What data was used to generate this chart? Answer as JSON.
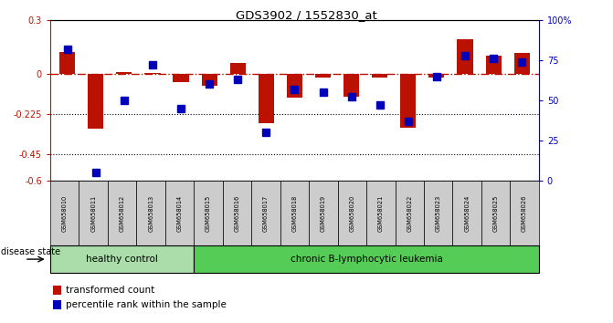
{
  "title": "GDS3902 / 1552830_at",
  "samples": [
    "GSM658010",
    "GSM658011",
    "GSM658012",
    "GSM658013",
    "GSM658014",
    "GSM658015",
    "GSM658016",
    "GSM658017",
    "GSM658018",
    "GSM658019",
    "GSM658020",
    "GSM658021",
    "GSM658022",
    "GSM658023",
    "GSM658024",
    "GSM658025",
    "GSM658026"
  ],
  "red_values": [
    0.12,
    -0.31,
    0.01,
    0.005,
    -0.05,
    -0.07,
    0.06,
    -0.28,
    -0.135,
    -0.025,
    -0.13,
    -0.025,
    -0.305,
    -0.02,
    0.19,
    0.1,
    0.115
  ],
  "blue_percentile": [
    82,
    5,
    50,
    72,
    45,
    60,
    63,
    30,
    57,
    55,
    52,
    47,
    37,
    65,
    78,
    76,
    74
  ],
  "ylim_left": [
    -0.6,
    0.3
  ],
  "ylim_right": [
    0,
    100
  ],
  "yticks_left": [
    -0.6,
    -0.45,
    -0.225,
    0.0,
    0.3
  ],
  "ytick_labels_left": [
    "-0.6",
    "-0.45",
    "-0.225",
    "0",
    "0.3"
  ],
  "yticks_right": [
    0,
    25,
    50,
    75,
    100
  ],
  "ytick_labels_right": [
    "0",
    "25",
    "50",
    "75",
    "100%"
  ],
  "hlines": [
    -0.225,
    -0.45
  ],
  "healthy_n": 5,
  "red_color": "#BB1100",
  "blue_color": "#0000BB",
  "bar_width": 0.55,
  "blue_marker_size": 6,
  "disease_labels": [
    "healthy control",
    "chronic B-lymphocytic leukemia"
  ],
  "healthy_color": "#AADDAA",
  "leukemia_color": "#55CC55",
  "label_gray": "#CCCCCC"
}
